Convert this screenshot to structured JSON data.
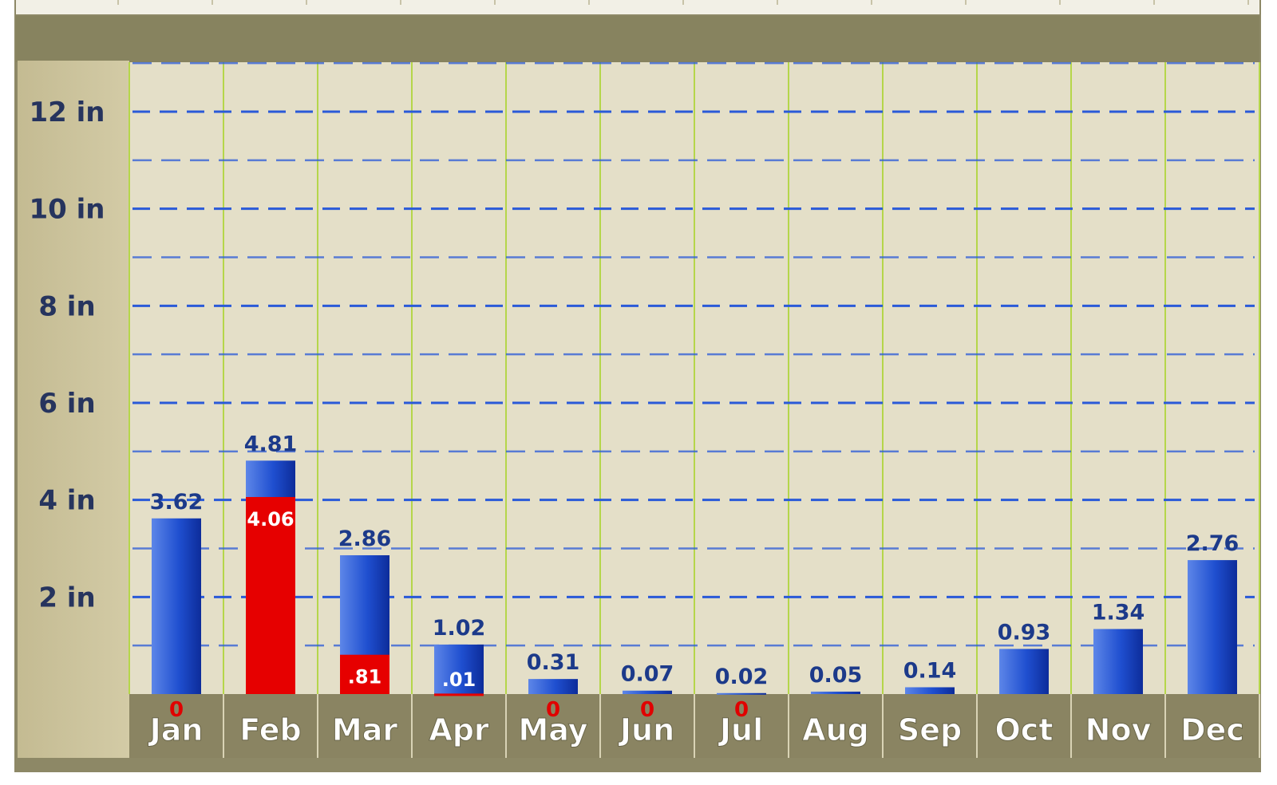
{
  "chart_data": {
    "type": "bar",
    "categories": [
      "Jan",
      "Feb",
      "Mar",
      "Apr",
      "May",
      "Jun",
      "Jul",
      "Aug",
      "Sep",
      "Oct",
      "Nov",
      "Dec"
    ],
    "series": [
      {
        "values": [
          3.62,
          4.81,
          2.86,
          1.02,
          0.31,
          0.07,
          0.02,
          0.05,
          0.14,
          0.93,
          1.34,
          2.76
        ]
      },
      {
        "values": [
          0,
          4.06,
          0.81,
          0.01,
          0,
          0,
          0,
          null,
          null,
          null,
          null,
          null
        ]
      }
    ],
    "total_labels": [
      "3.62",
      "4.81",
      "2.86",
      "1.02",
      "0.31",
      "0.07",
      "0.02",
      "0.05",
      "0.14",
      "0.93",
      "1.34",
      "2.76"
    ],
    "red_labels": [
      "0",
      "4.06",
      ".81",
      ".01",
      "0",
      "0",
      "0",
      "",
      "",
      "",
      "",
      ""
    ],
    "yticks": [
      2,
      4,
      6,
      8,
      10,
      12
    ],
    "ytick_labels": [
      "2 in",
      "4 in",
      "6 in",
      "8 in",
      "10 in",
      "12 in"
    ],
    "ylim": [
      0,
      13.2
    ],
    "grid": true,
    "colors": {
      "blue_bar": "#1a3fc0",
      "red_bar": "#e60000",
      "value_label": "#1c3a8a",
      "red_value_label": "#e00000",
      "gridline": "#2a5ad8",
      "plot_bg": "#e4dfc8",
      "axis_panel": "#c9c09a",
      "month_band": "#8a8462",
      "month_label": "#ffffff",
      "top_band": "#87835f",
      "vertical_grid": "#b5d64a"
    }
  }
}
